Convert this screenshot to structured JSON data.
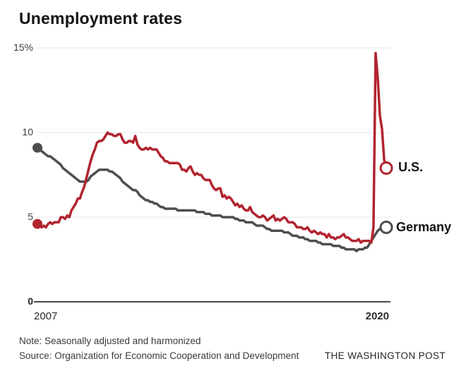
{
  "chart": {
    "title": "Unemployment rates",
    "note": "Note: Seasonally adjusted and harmonized",
    "source": "Source: Organization for Economic Cooperation and Development",
    "credit": "THE WASHINGTON POST"
  },
  "chart_data": {
    "type": "line",
    "title": "Unemployment rates",
    "unit": "percent",
    "x_start_label": "2007",
    "x_end_label": "2020",
    "x_monthly_range": [
      "2007-01",
      "2020-09"
    ],
    "y_ticks": [
      0,
      5,
      10,
      15
    ],
    "y_tick_labels": [
      "0",
      "5",
      "10",
      "15%"
    ],
    "ylim": [
      0,
      15.2
    ],
    "grid": "horizontal",
    "legend_position": "right-of-line-end",
    "colors": {
      "us": "#b2242f",
      "germany": "#4e4e4e",
      "gridline": "#e4e4e4",
      "baseline": "#484848"
    },
    "series": [
      {
        "name": "U.S.",
        "key": "us",
        "color": "#b2242f",
        "start_value": 4.6,
        "end_value": 7.9,
        "peak_value": 14.7,
        "values": [
          4.6,
          4.5,
          4.4,
          4.5,
          4.4,
          4.6,
          4.7,
          4.6,
          4.7,
          4.7,
          4.7,
          5.0,
          5.0,
          4.9,
          5.1,
          5.0,
          5.4,
          5.6,
          5.8,
          6.1,
          6.1,
          6.5,
          6.8,
          7.3,
          7.8,
          8.3,
          8.7,
          9.0,
          9.4,
          9.5,
          9.5,
          9.6,
          9.8,
          10.0,
          9.9,
          9.9,
          9.8,
          9.8,
          9.9,
          9.9,
          9.6,
          9.4,
          9.4,
          9.5,
          9.5,
          9.4,
          9.8,
          9.3,
          9.1,
          9.0,
          9.0,
          9.1,
          9.0,
          9.1,
          9.0,
          9.0,
          9.0,
          8.8,
          8.6,
          8.5,
          8.3,
          8.3,
          8.2,
          8.2,
          8.2,
          8.2,
          8.2,
          8.1,
          7.8,
          7.8,
          7.7,
          7.9,
          8.0,
          7.7,
          7.5,
          7.6,
          7.5,
          7.5,
          7.3,
          7.2,
          7.2,
          7.2,
          6.9,
          6.7,
          6.6,
          6.7,
          6.7,
          6.2,
          6.3,
          6.1,
          6.2,
          6.1,
          5.9,
          5.7,
          5.8,
          5.6,
          5.7,
          5.5,
          5.4,
          5.4,
          5.6,
          5.3,
          5.2,
          5.1,
          5.0,
          5.0,
          5.1,
          5.0,
          4.8,
          4.9,
          5.0,
          5.1,
          4.8,
          4.9,
          4.8,
          4.9,
          5.0,
          4.9,
          4.7,
          4.7,
          4.7,
          4.6,
          4.4,
          4.4,
          4.4,
          4.3,
          4.3,
          4.4,
          4.2,
          4.1,
          4.2,
          4.1,
          4.0,
          4.1,
          4.0,
          4.0,
          3.8,
          4.0,
          3.8,
          3.8,
          3.7,
          3.8,
          3.8,
          3.9,
          4.0,
          3.8,
          3.8,
          3.7,
          3.6,
          3.6,
          3.6,
          3.7,
          3.5,
          3.6,
          3.6,
          3.6,
          3.6,
          3.5,
          4.4,
          14.7,
          13.2,
          11.0,
          10.2,
          8.4,
          7.9
        ]
      },
      {
        "name": "Germany",
        "key": "germany",
        "color": "#4e4e4e",
        "start_value": 9.1,
        "end_value": 4.4,
        "values": [
          9.1,
          9.0,
          8.9,
          8.8,
          8.7,
          8.6,
          8.6,
          8.5,
          8.4,
          8.3,
          8.2,
          8.1,
          7.9,
          7.8,
          7.7,
          7.6,
          7.5,
          7.4,
          7.3,
          7.2,
          7.1,
          7.1,
          7.1,
          7.1,
          7.2,
          7.4,
          7.5,
          7.6,
          7.7,
          7.8,
          7.8,
          7.8,
          7.8,
          7.8,
          7.7,
          7.7,
          7.6,
          7.5,
          7.4,
          7.3,
          7.1,
          7.0,
          6.9,
          6.8,
          6.7,
          6.6,
          6.6,
          6.5,
          6.3,
          6.2,
          6.1,
          6.0,
          6.0,
          5.9,
          5.9,
          5.8,
          5.8,
          5.7,
          5.6,
          5.6,
          5.5,
          5.5,
          5.5,
          5.5,
          5.5,
          5.5,
          5.4,
          5.4,
          5.4,
          5.4,
          5.4,
          5.4,
          5.4,
          5.4,
          5.4,
          5.3,
          5.3,
          5.3,
          5.3,
          5.2,
          5.2,
          5.2,
          5.1,
          5.1,
          5.1,
          5.1,
          5.1,
          5.0,
          5.0,
          5.0,
          5.0,
          5.0,
          5.0,
          4.9,
          4.9,
          4.8,
          4.8,
          4.8,
          4.7,
          4.7,
          4.7,
          4.7,
          4.6,
          4.5,
          4.5,
          4.5,
          4.5,
          4.4,
          4.3,
          4.3,
          4.2,
          4.2,
          4.2,
          4.2,
          4.2,
          4.2,
          4.1,
          4.1,
          4.1,
          4.0,
          3.9,
          3.9,
          3.9,
          3.8,
          3.8,
          3.8,
          3.7,
          3.7,
          3.6,
          3.6,
          3.6,
          3.6,
          3.5,
          3.5,
          3.4,
          3.4,
          3.4,
          3.4,
          3.4,
          3.3,
          3.3,
          3.3,
          3.3,
          3.2,
          3.2,
          3.1,
          3.1,
          3.1,
          3.1,
          3.1,
          3.0,
          3.1,
          3.1,
          3.1,
          3.2,
          3.2,
          3.4,
          3.6,
          3.8,
          4.0,
          4.2,
          4.3,
          4.4,
          4.4,
          4.4
        ]
      }
    ]
  }
}
